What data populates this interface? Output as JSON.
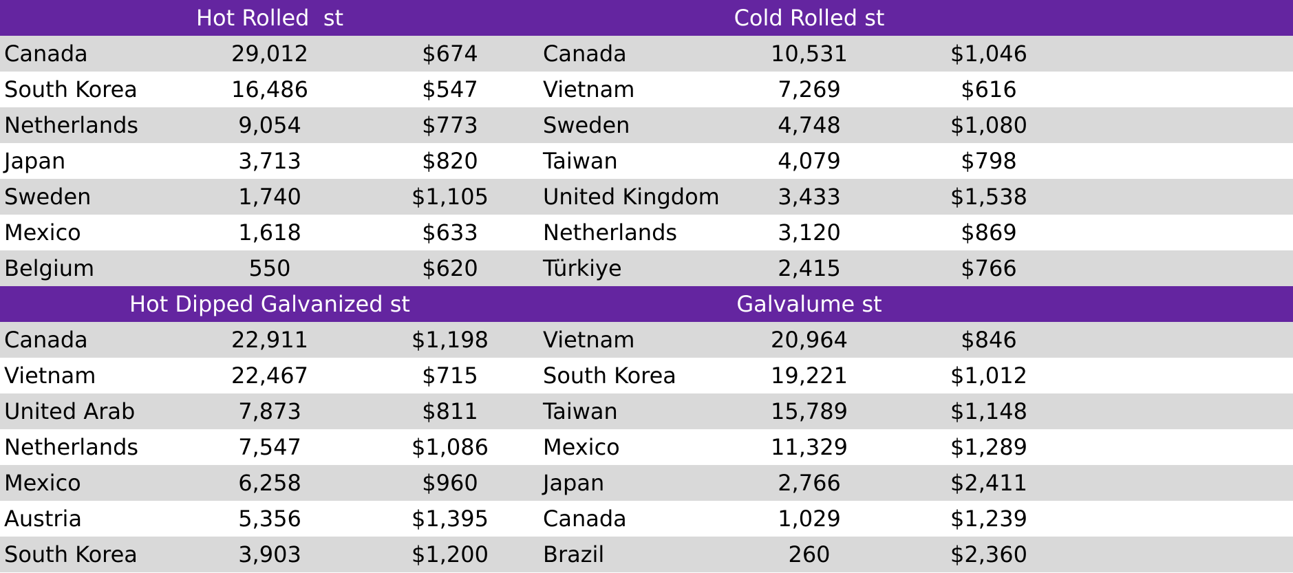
{
  "colors": {
    "header_bg": "#6425A0",
    "header_text": "#FFFFFF",
    "row_shaded": "#D9D9D9",
    "row_plain": "#FFFFFF",
    "text": "#000000"
  },
  "sections": [
    {
      "left": {
        "title": "Hot Rolled  st",
        "rows": [
          {
            "country": "Canada",
            "tons": "29,012",
            "price": "$674"
          },
          {
            "country": "South Korea",
            "tons": "16,486",
            "price": "$547"
          },
          {
            "country": "Netherlands",
            "tons": "9,054",
            "price": "$773"
          },
          {
            "country": "Japan",
            "tons": "3,713",
            "price": "$820"
          },
          {
            "country": "Sweden",
            "tons": "1,740",
            "price": "$1,105"
          },
          {
            "country": "Mexico",
            "tons": "1,618",
            "price": "$633"
          },
          {
            "country": "Belgium",
            "tons": "550",
            "price": "$620"
          }
        ]
      },
      "right": {
        "title": "Cold Rolled st",
        "rows": [
          {
            "country": "Canada",
            "tons": "10,531",
            "price": "$1,046"
          },
          {
            "country": "Vietnam",
            "tons": "7,269",
            "price": "$616"
          },
          {
            "country": "Sweden",
            "tons": "4,748",
            "price": "$1,080"
          },
          {
            "country": "Taiwan",
            "tons": "4,079",
            "price": "$798"
          },
          {
            "country": "United Kingdom",
            "tons": "3,433",
            "price": "$1,538"
          },
          {
            "country": "Netherlands",
            "tons": "3,120",
            "price": "$869"
          },
          {
            "country": "Türkiye",
            "tons": "2,415",
            "price": "$766"
          }
        ]
      }
    },
    {
      "left": {
        "title": "Hot Dipped Galvanized st",
        "rows": [
          {
            "country": "Canada",
            "tons": "22,911",
            "price": "$1,198"
          },
          {
            "country": "Vietnam",
            "tons": "22,467",
            "price": "$715"
          },
          {
            "country": "United Arab",
            "tons": "7,873",
            "price": "$811"
          },
          {
            "country": "Netherlands",
            "tons": "7,547",
            "price": "$1,086"
          },
          {
            "country": "Mexico",
            "tons": "6,258",
            "price": "$960"
          },
          {
            "country": "Austria",
            "tons": "5,356",
            "price": "$1,395"
          },
          {
            "country": "South Korea",
            "tons": "3,903",
            "price": "$1,200"
          }
        ]
      },
      "right": {
        "title": "Galvalume st",
        "rows": [
          {
            "country": "Vietnam",
            "tons": "20,964",
            "price": "$846"
          },
          {
            "country": "South Korea",
            "tons": "19,221",
            "price": "$1,012"
          },
          {
            "country": "Taiwan",
            "tons": "15,789",
            "price": "$1,148"
          },
          {
            "country": "Mexico",
            "tons": "11,329",
            "price": "$1,289"
          },
          {
            "country": "Japan",
            "tons": "2,766",
            "price": "$2,411"
          },
          {
            "country": "Canada",
            "tons": "1,029",
            "price": "$1,239"
          },
          {
            "country": "Brazil",
            "tons": "260",
            "price": "$2,360"
          }
        ]
      }
    }
  ],
  "chart_data": {
    "type": "table",
    "tables": [
      {
        "title": "Hot Rolled  st",
        "rows": [
          [
            "Canada",
            "29,012",
            "$674"
          ],
          [
            "South Korea",
            "16,486",
            "$547"
          ],
          [
            "Netherlands",
            "9,054",
            "$773"
          ],
          [
            "Japan",
            "3,713",
            "$820"
          ],
          [
            "Sweden",
            "1,740",
            "$1,105"
          ],
          [
            "Mexico",
            "1,618",
            "$633"
          ],
          [
            "Belgium",
            "550",
            "$620"
          ]
        ]
      },
      {
        "title": "Cold Rolled st",
        "rows": [
          [
            "Canada",
            "10,531",
            "$1,046"
          ],
          [
            "Vietnam",
            "7,269",
            "$616"
          ],
          [
            "Sweden",
            "4,748",
            "$1,080"
          ],
          [
            "Taiwan",
            "4,079",
            "$798"
          ],
          [
            "United Kingdom",
            "3,433",
            "$1,538"
          ],
          [
            "Netherlands",
            "3,120",
            "$869"
          ],
          [
            "Türkiye",
            "2,415",
            "$766"
          ]
        ]
      },
      {
        "title": "Hot Dipped Galvanized st",
        "rows": [
          [
            "Canada",
            "22,911",
            "$1,198"
          ],
          [
            "Vietnam",
            "22,467",
            "$715"
          ],
          [
            "United Arab",
            "7,873",
            "$811"
          ],
          [
            "Netherlands",
            "7,547",
            "$1,086"
          ],
          [
            "Mexico",
            "6,258",
            "$960"
          ],
          [
            "Austria",
            "5,356",
            "$1,395"
          ],
          [
            "South Korea",
            "3,903",
            "$1,200"
          ]
        ]
      },
      {
        "title": "Galvalume st",
        "rows": [
          [
            "Vietnam",
            "20,964",
            "$846"
          ],
          [
            "South Korea",
            "19,221",
            "$1,012"
          ],
          [
            "Taiwan",
            "15,789",
            "$1,148"
          ],
          [
            "Mexico",
            "11,329",
            "$1,289"
          ],
          [
            "Japan",
            "2,766",
            "$2,411"
          ],
          [
            "Canada",
            "1,029",
            "$1,239"
          ],
          [
            "Brazil",
            "260",
            "$2,360"
          ]
        ]
      }
    ]
  }
}
